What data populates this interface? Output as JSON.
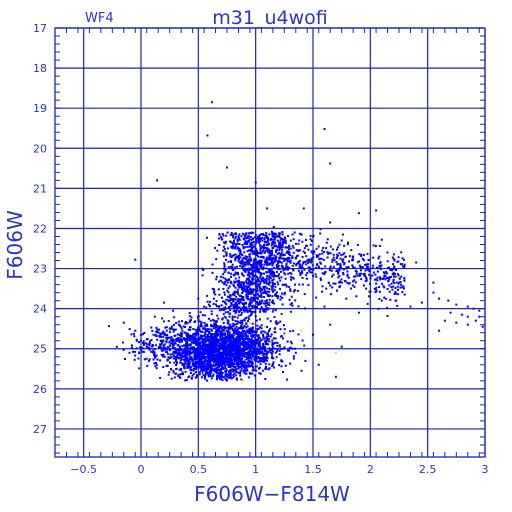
{
  "chart_data": {
    "type": "scatter",
    "title": "m31_u4wofi",
    "chip_label": "WF4",
    "xlabel": "F606W−F814W",
    "ylabel": "F606W",
    "xlim": [
      -0.75,
      3.0
    ],
    "ylim": [
      27.7,
      17.0
    ],
    "x_ticks": [
      {
        "value": -0.5,
        "label": "−0.5"
      },
      {
        "value": 0,
        "label": "0"
      },
      {
        "value": 0.5,
        "label": "0.5"
      },
      {
        "value": 1,
        "label": "1"
      },
      {
        "value": 1.5,
        "label": "1.5"
      },
      {
        "value": 2,
        "label": "2"
      },
      {
        "value": 2.5,
        "label": "2.5"
      },
      {
        "value": 3,
        "label": "3"
      }
    ],
    "y_ticks": [
      {
        "value": 17,
        "label": "17"
      },
      {
        "value": 18,
        "label": "18"
      },
      {
        "value": 19,
        "label": "19"
      },
      {
        "value": 20,
        "label": "20"
      },
      {
        "value": 21,
        "label": "21"
      },
      {
        "value": 22,
        "label": "22"
      },
      {
        "value": 23,
        "label": "23"
      },
      {
        "value": 24,
        "label": "24"
      },
      {
        "value": 25,
        "label": "25"
      },
      {
        "value": 26,
        "label": "26"
      },
      {
        "value": 27,
        "label": "27"
      }
    ],
    "grid": true,
    "colors": {
      "axis": "#1a22c8",
      "points": "#0000ff",
      "highlight": "#ffd800",
      "text": "#2a33cc"
    },
    "stars": [
      {
        "x": 0.62,
        "y": 18.85
      },
      {
        "x": 0.58,
        "y": 19.68
      },
      {
        "x": 1.6,
        "y": 19.52
      },
      {
        "x": 1.65,
        "y": 20.38
      },
      {
        "x": 0.75,
        "y": 20.48
      },
      {
        "x": 0.14,
        "y": 20.8
      },
      {
        "x": 1.0,
        "y": 20.85
      },
      {
        "x": 1.1,
        "y": 21.5
      },
      {
        "x": 1.42,
        "y": 21.5
      },
      {
        "x": 1.65,
        "y": 21.85
      },
      {
        "x": 1.9,
        "y": 21.62
      },
      {
        "x": 2.05,
        "y": 21.55
      },
      {
        "x": -0.05,
        "y": 22.78
      },
      {
        "x": 0.68,
        "y": 22.25
      },
      {
        "x": 1.75,
        "y": 22.3
      },
      {
        "x": 2.1,
        "y": 22.28
      },
      {
        "x": 1.55,
        "y": 22.45
      },
      {
        "x": 1.85,
        "y": 22.7
      },
      {
        "x": 2.15,
        "y": 22.6
      },
      {
        "x": 2.3,
        "y": 22.9
      },
      {
        "x": 2.4,
        "y": 22.85
      },
      {
        "x": 2.22,
        "y": 23.2
      },
      {
        "x": 2.55,
        "y": 23.35
      },
      {
        "x": 2.55,
        "y": 23.6
      },
      {
        "x": 2.6,
        "y": 23.75
      },
      {
        "x": 2.68,
        "y": 23.8
      },
      {
        "x": 2.75,
        "y": 23.9
      },
      {
        "x": 2.85,
        "y": 23.95
      },
      {
        "x": 2.9,
        "y": 24.0
      },
      {
        "x": 2.95,
        "y": 24.05
      },
      {
        "x": 2.7,
        "y": 24.1
      },
      {
        "x": 2.8,
        "y": 24.15
      },
      {
        "x": 2.65,
        "y": 24.3
      },
      {
        "x": 2.85,
        "y": 24.2
      },
      {
        "x": 2.75,
        "y": 24.35
      },
      {
        "x": 2.92,
        "y": 24.3
      },
      {
        "x": 2.85,
        "y": 24.4
      },
      {
        "x": 2.98,
        "y": 24.45
      },
      {
        "x": 2.6,
        "y": 24.55
      },
      {
        "x": 2.95,
        "y": 24.2
      },
      {
        "x": 2.2,
        "y": 23.45
      },
      {
        "x": 2.3,
        "y": 23.65
      },
      {
        "x": 2.1,
        "y": 23.8
      },
      {
        "x": 2.35,
        "y": 23.95
      },
      {
        "x": 2.45,
        "y": 23.85
      },
      {
        "x": 1.6,
        "y": 23.95
      },
      {
        "x": 1.9,
        "y": 24.1
      },
      {
        "x": 1.65,
        "y": 24.4
      },
      {
        "x": 1.5,
        "y": 24.65
      },
      {
        "x": 1.35,
        "y": 25.1
      },
      {
        "x": 1.55,
        "y": 25.4
      },
      {
        "x": 1.7,
        "y": 25.7
      },
      {
        "x": 1.75,
        "y": 24.95
      },
      {
        "x": 1.4,
        "y": 25.55
      },
      {
        "x": 0.2,
        "y": 23.85
      },
      {
        "x": 0.12,
        "y": 24.2
      },
      {
        "x": 0.28,
        "y": 24.05
      },
      {
        "x": 0.5,
        "y": 23.75
      },
      {
        "x": 0.55,
        "y": 23.95
      },
      {
        "x": -0.15,
        "y": 24.35
      },
      {
        "x": -0.05,
        "y": 24.55
      },
      {
        "x": 0.05,
        "y": 24.95
      },
      {
        "x": -0.1,
        "y": 25.1
      },
      {
        "x": 0.0,
        "y": 24.8
      },
      {
        "x": 0.18,
        "y": 25.15
      }
    ],
    "highlighted": [
      {
        "x": 0.78,
        "y": 24.55
      },
      {
        "x": 0.88,
        "y": 24.95
      },
      {
        "x": 0.92,
        "y": 25.3
      },
      {
        "x": 0.7,
        "y": 25.05
      },
      {
        "x": 0.98,
        "y": 24.75
      },
      {
        "x": 0.85,
        "y": 25.55
      },
      {
        "x": 1.05,
        "y": 25.15
      },
      {
        "x": 0.62,
        "y": 25.35
      },
      {
        "x": 0.95,
        "y": 24.35
      },
      {
        "x": 0.82,
        "y": 24.15
      },
      {
        "x": 1.12,
        "y": 24.85
      },
      {
        "x": 0.75,
        "y": 25.45
      },
      {
        "x": 0.58,
        "y": 24.85
      },
      {
        "x": 1.0,
        "y": 25.6
      },
      {
        "x": 1.18,
        "y": 25.25
      },
      {
        "x": 0.72,
        "y": 23.95
      },
      {
        "x": 1.7,
        "y": 25.1
      },
      {
        "x": 1.25,
        "y": 24.65
      },
      {
        "x": 0.45,
        "y": 25.15
      },
      {
        "x": 0.88,
        "y": 25.8
      },
      {
        "x": 1.4,
        "y": 24.55
      },
      {
        "x": 0.55,
        "y": 25.6
      },
      {
        "x": 1.08,
        "y": 24.45
      },
      {
        "x": 0.82,
        "y": 24.7
      }
    ]
  }
}
